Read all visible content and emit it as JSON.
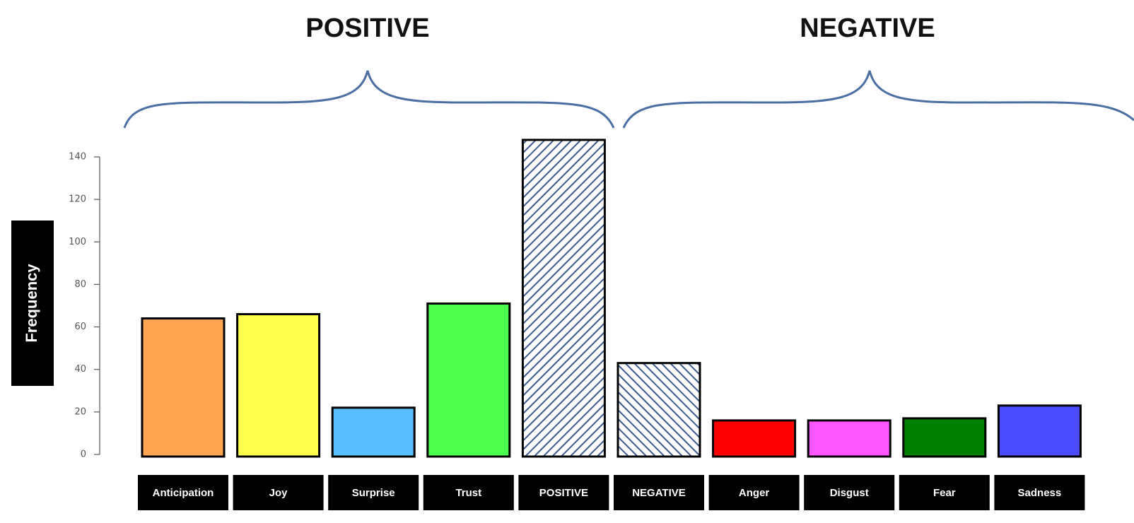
{
  "chart_data": {
    "type": "bar",
    "title": "",
    "xlabel": "",
    "ylabel": "Frequency",
    "ylim": [
      0,
      140
    ],
    "yticks": [
      0,
      20,
      40,
      60,
      80,
      100,
      120,
      140
    ],
    "grid": false,
    "legend": "none",
    "groups": [
      {
        "label": "POSITIVE",
        "categories": [
          "Anticipation",
          "Joy",
          "Surprise",
          "Trust",
          "POSITIVE"
        ]
      },
      {
        "label": "NEGATIVE",
        "categories": [
          "NEGATIVE",
          "Anger",
          "Disgust",
          "Fear",
          "Sadness"
        ]
      }
    ],
    "categories": [
      "Anticipation",
      "Joy",
      "Surprise",
      "Trust",
      "POSITIVE",
      "NEGATIVE",
      "Anger",
      "Disgust",
      "Fear",
      "Sadness"
    ],
    "values": [
      64,
      66,
      22,
      71,
      148,
      43,
      16,
      16,
      17,
      23
    ],
    "colors": [
      "#ffa552",
      "#ffff4d",
      "#5bbfff",
      "#4cff4c",
      "hatch",
      "hatch",
      "#ff0000",
      "#ff55ff",
      "#008000",
      "#4d4dff"
    ],
    "brace_color": "#4a6fa5",
    "hatch_color": "#3a5a8c"
  }
}
